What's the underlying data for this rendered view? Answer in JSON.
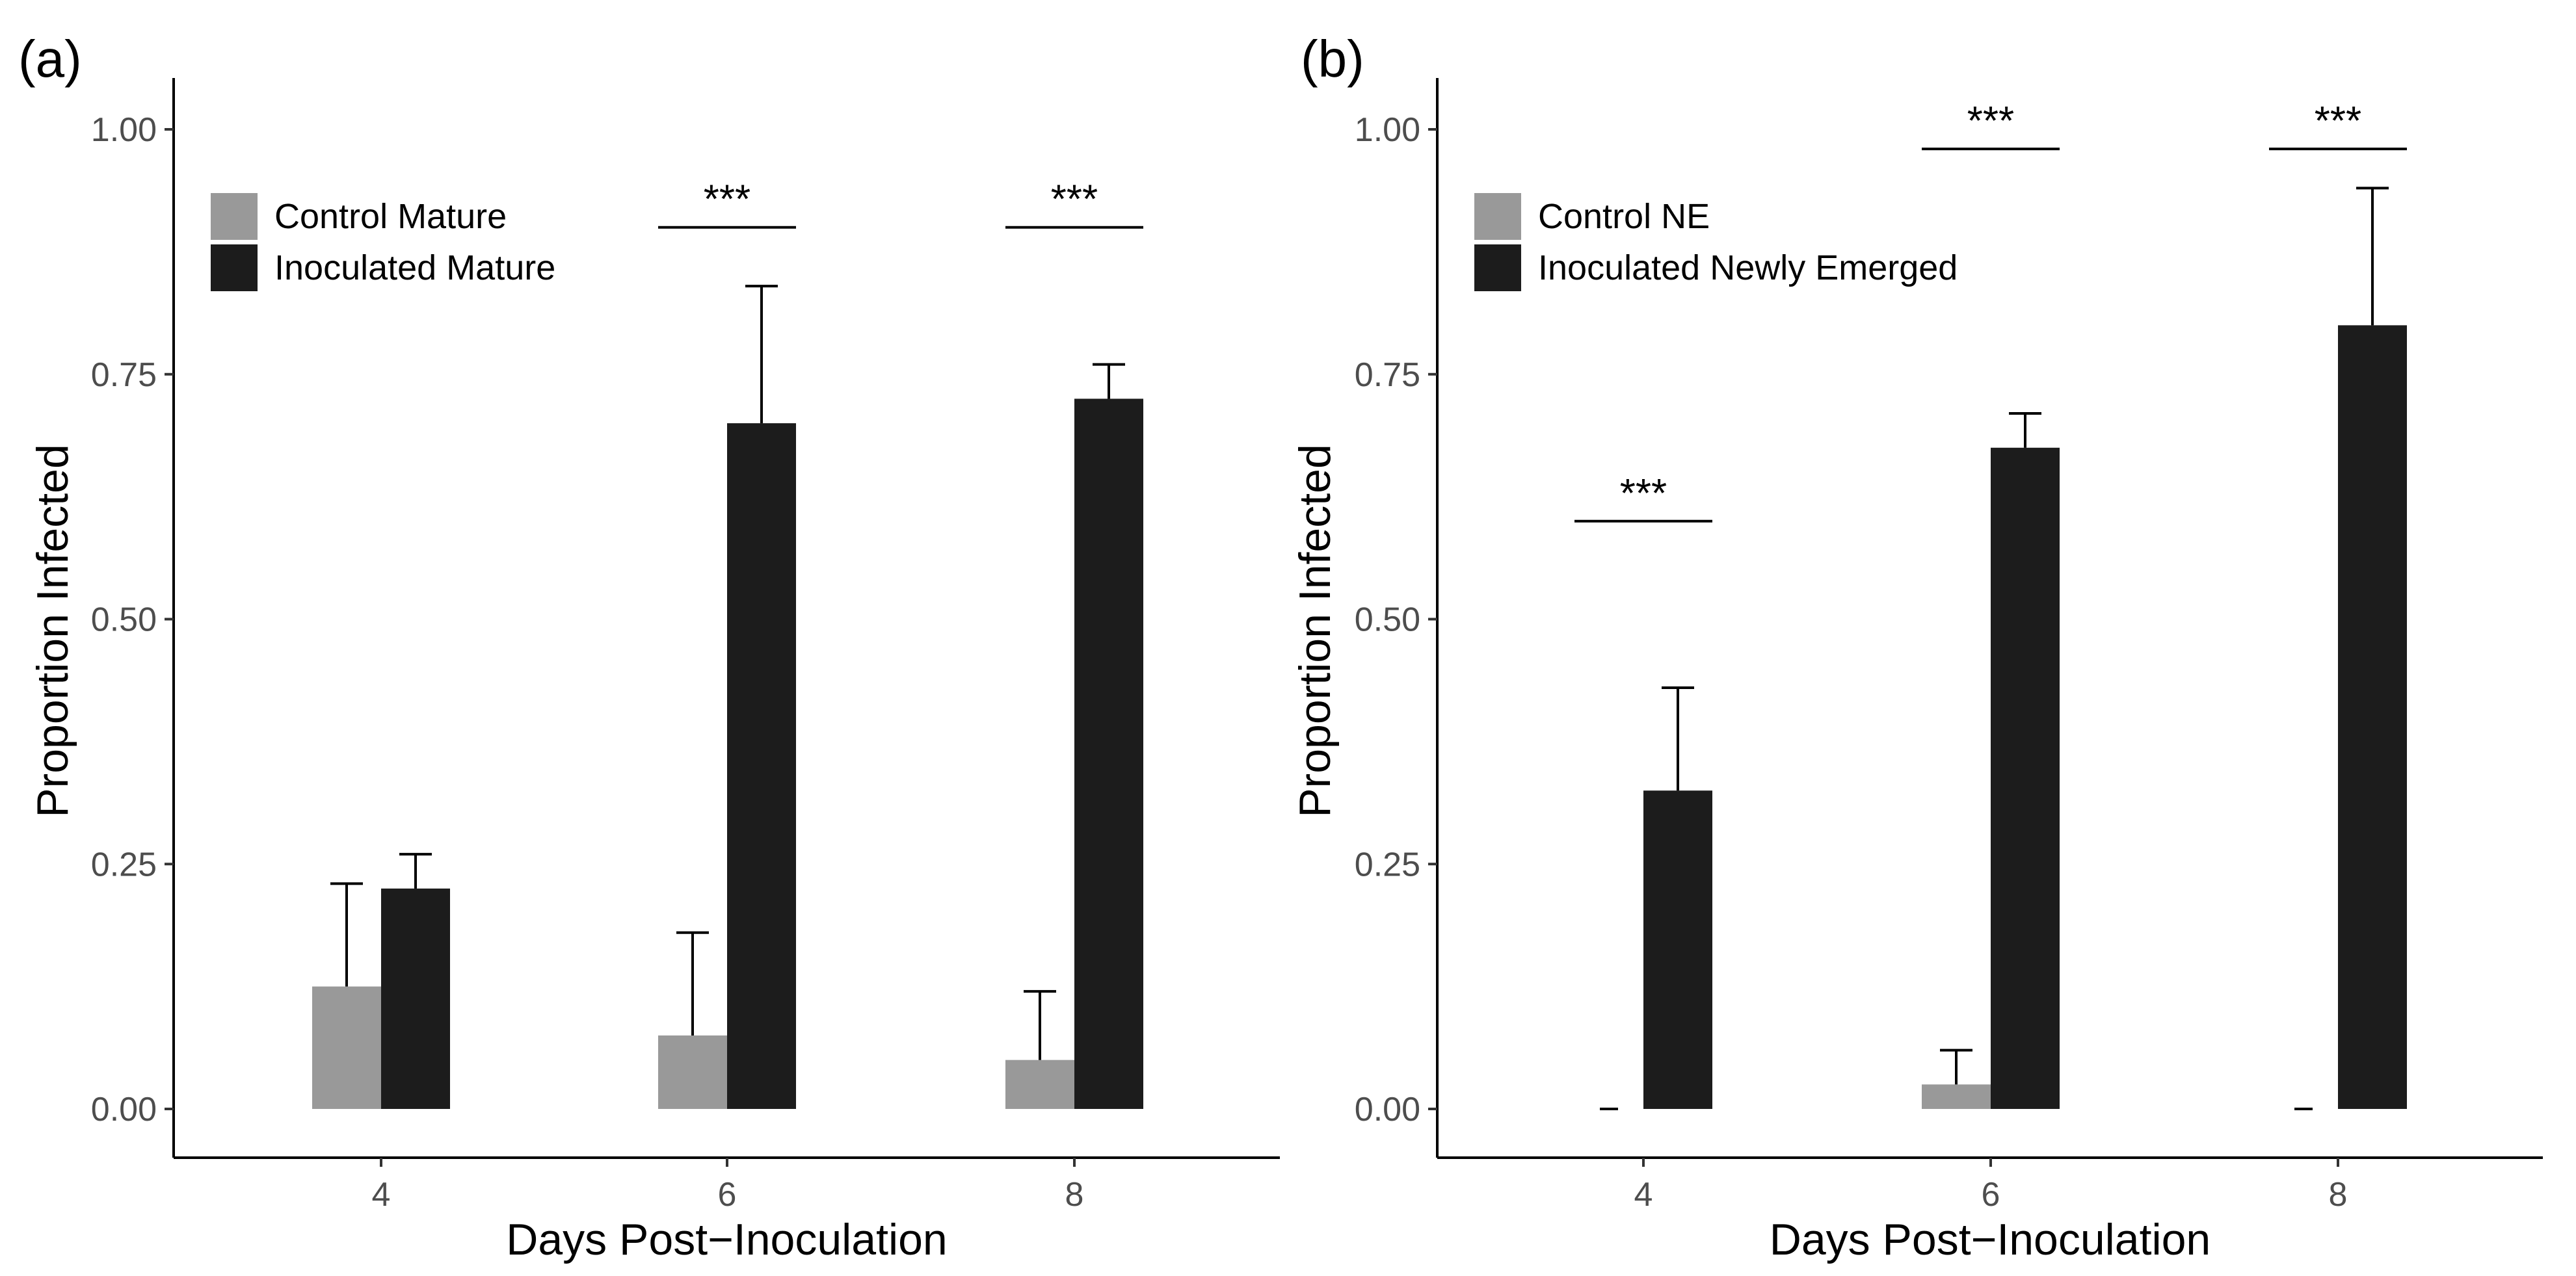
{
  "chart_data": [
    {
      "panel": "(a)",
      "type": "bar",
      "xlabel": "Days Post−Inoculation",
      "ylabel": "Proportion Infected",
      "ylim": [
        0,
        1.0
      ],
      "yticks": [
        "0.00",
        "0.25",
        "0.50",
        "0.75",
        "1.00"
      ],
      "categories": [
        "4",
        "6",
        "8"
      ],
      "legend_position": "top-left",
      "grid": false,
      "series": [
        {
          "name": "Control Mature",
          "color": "#999999",
          "values": [
            0.125,
            0.075,
            0.05
          ],
          "error_upper": [
            0.23,
            0.18,
            0.12
          ]
        },
        {
          "name": "Inoculated Mature",
          "color": "#1c1c1c",
          "values": [
            0.225,
            0.7,
            0.725
          ],
          "error_upper": [
            0.26,
            0.84,
            0.76
          ]
        }
      ],
      "significance": [
        {
          "category": "6",
          "label": "***",
          "level": 0.9
        },
        {
          "category": "8",
          "label": "***",
          "level": 0.9
        }
      ]
    },
    {
      "panel": "(b)",
      "type": "bar",
      "xlabel": "Days Post−Inoculation",
      "ylabel": "Proportion Infected",
      "ylim": [
        0,
        1.0
      ],
      "yticks": [
        "0.00",
        "0.25",
        "0.50",
        "0.75",
        "1.00"
      ],
      "categories": [
        "4",
        "6",
        "8"
      ],
      "legend_position": "top-left",
      "grid": false,
      "series": [
        {
          "name": "Control NE",
          "color": "#999999",
          "values": [
            0.0,
            0.025,
            0.0
          ],
          "error_upper": [
            0.0,
            0.06,
            0.0
          ]
        },
        {
          "name": "Inoculated Newly Emerged",
          "color": "#1c1c1c",
          "values": [
            0.325,
            0.675,
            0.8
          ],
          "error_upper": [
            0.43,
            0.71,
            0.94
          ]
        }
      ],
      "significance": [
        {
          "category": "4",
          "label": "***",
          "level": 0.6
        },
        {
          "category": "6",
          "label": "***",
          "level": 0.98
        },
        {
          "category": "8",
          "label": "***",
          "level": 0.98
        }
      ]
    }
  ]
}
